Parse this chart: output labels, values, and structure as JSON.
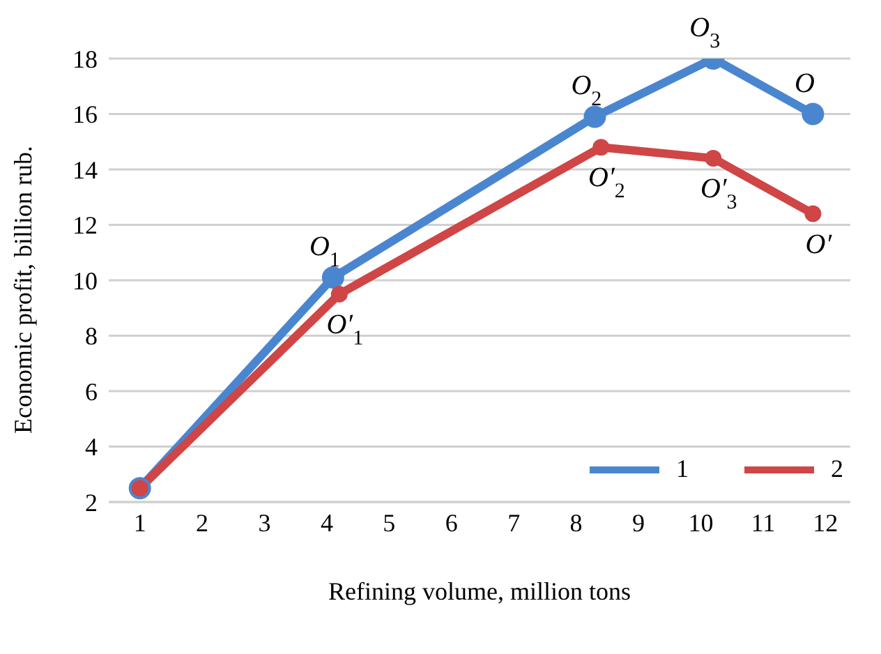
{
  "chart_data": {
    "type": "line",
    "xlabel": "Refining volume, million tons",
    "ylabel": "Economic profit, billion rub.",
    "xlim": [
      0.5,
      12.4
    ],
    "xticks": [
      1,
      2,
      3,
      4,
      5,
      6,
      7,
      8,
      9,
      10,
      11,
      12
    ],
    "ylim": [
      2,
      18
    ],
    "yticks": [
      2,
      4,
      6,
      8,
      10,
      12,
      14,
      16,
      18
    ],
    "grid": "y",
    "legend": "bottom right",
    "marker": "circle",
    "line_style": "solid",
    "series": [
      {
        "name": "1",
        "color": "#4a86d0",
        "x": [
          1,
          4.1,
          8.3,
          10.2,
          11.8
        ],
        "values": [
          2.5,
          10.1,
          15.9,
          18,
          16
        ]
      },
      {
        "name": "2",
        "color": "#d04545",
        "x": [
          1,
          4.2,
          8.4,
          10.2,
          11.8
        ],
        "values": [
          2.5,
          9.5,
          14.8,
          14.4,
          12.4
        ]
      }
    ],
    "annotations": [
      {
        "text": "O$_{1}$",
        "x": 4.1,
        "y": 10.1
      },
      {
        "text": "O$_{2}$",
        "x": 8.3,
        "y": 15.9
      },
      {
        "text": "O$_{3}$",
        "x": 10.2,
        "y": 18
      },
      {
        "text": "O",
        "x": 11.8,
        "y": 16
      },
      {
        "text": "O′$_{1}$",
        "x": 4.2,
        "y": 9.5
      },
      {
        "text": "O′$_{2}$",
        "x": 8.4,
        "y": 14.8
      },
      {
        "text": "O′$_{3}$",
        "x": 10.2,
        "y": 14.4
      },
      {
        "text": "O′",
        "x": 11.8,
        "y": 12.4
      }
    ]
  }
}
